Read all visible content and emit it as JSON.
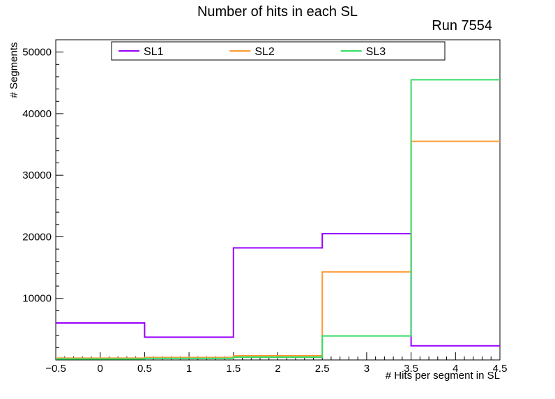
{
  "title": "Number of hits in each SL",
  "run_label": "Run 7554",
  "chart_data": {
    "type": "line",
    "style": "step-histogram",
    "title": "Number of hits in each SL",
    "annotation": "Run 7554",
    "xlabel": "# Hits per segment in SL",
    "ylabel": "# Segments",
    "xlim": [
      -0.5,
      4.5
    ],
    "ylim": [
      0,
      52000
    ],
    "grid": false,
    "legend_position": "top-inside",
    "bin_edges": [
      -0.5,
      0.5,
      1.5,
      2.5,
      3.5,
      4.5
    ],
    "bin_centers": [
      0,
      1,
      2,
      3,
      4
    ],
    "x_ticks": [
      -0.5,
      0,
      0.5,
      1,
      1.5,
      2,
      2.5,
      3,
      3.5,
      4,
      4.5
    ],
    "x_tick_labels": [
      "−0.5",
      "0",
      "0.5",
      "1",
      "1.5",
      "2",
      "2.5",
      "3",
      "3.5",
      "4",
      "4.5"
    ],
    "x_minor_step": 0.1,
    "y_ticks": [
      10000,
      20000,
      30000,
      40000,
      50000
    ],
    "y_tick_labels": [
      "10000",
      "20000",
      "30000",
      "40000",
      "50000"
    ],
    "y_minor_step": 2000,
    "series": [
      {
        "name": "SL1",
        "color": "#9900ff",
        "values": [
          6000,
          3700,
          18200,
          20500,
          2300
        ]
      },
      {
        "name": "SL2",
        "color": "#ff9933",
        "values": [
          300,
          400,
          700,
          14300,
          35500
        ]
      },
      {
        "name": "SL3",
        "color": "#33dd66",
        "values": [
          150,
          250,
          450,
          3900,
          45500
        ]
      }
    ]
  }
}
